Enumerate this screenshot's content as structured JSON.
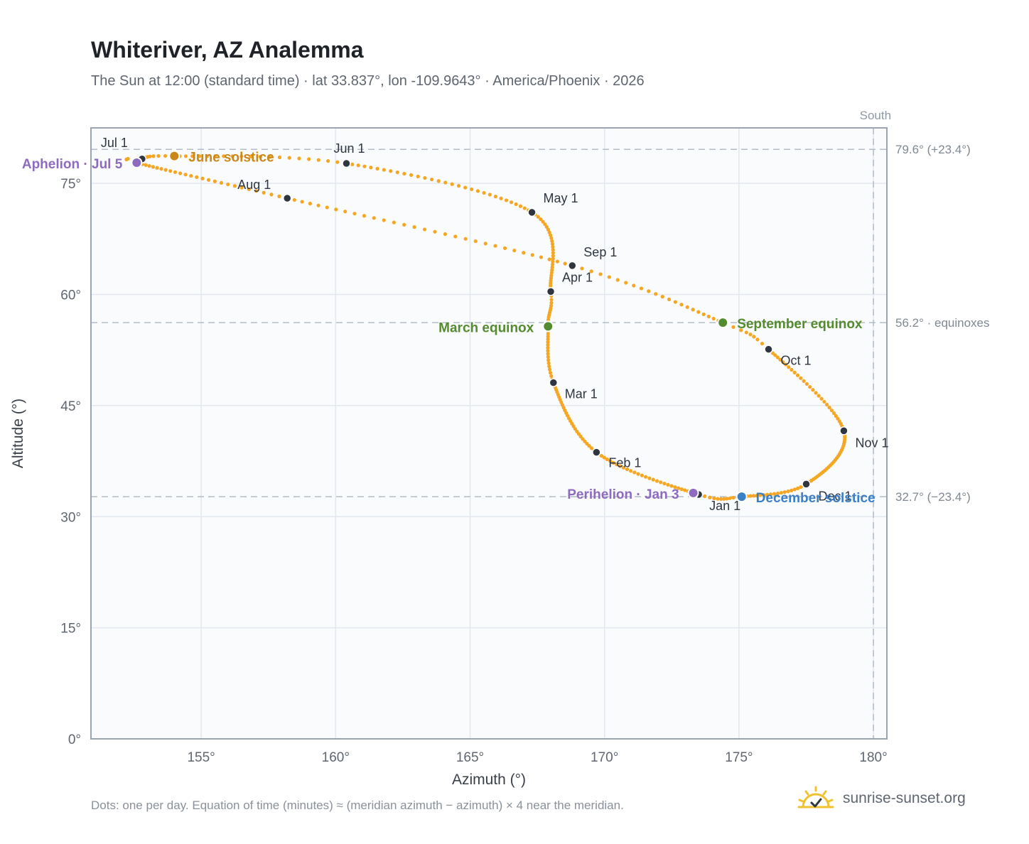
{
  "title": "Whiteriver, AZ Analemma",
  "subtitle": "The Sun at 12:00 (standard time) · lat 33.837°, lon -109.9643° · America/Phoenix · 2026",
  "footnote": "Dots: one per day. Equation of time (minutes) ≈ (meridian azimuth − azimuth) × 4 near the meridian.",
  "brand": "sunrise-sunset.org",
  "colors": {
    "curve": "#f5a623",
    "month_marker": "#2f3640",
    "solstice_june": "#c9891a",
    "solstice_december": "#3b7fc4",
    "equinox": "#558b2f",
    "apsis": "#8e6bbf",
    "reference_line": "#b3bcc8",
    "grid": "#e3e8ee",
    "plot_bg": "#f9fbfd"
  },
  "chart_data": {
    "type": "scatter",
    "xlabel": "Azimuth (°)",
    "ylabel": "Altitude (°)",
    "xlim": [
      150.9,
      180.5
    ],
    "ylim": [
      0,
      82.5
    ],
    "xticks": [
      155,
      160,
      165,
      170,
      175,
      180
    ],
    "yticks": [
      0,
      15,
      30,
      45,
      60,
      75
    ],
    "xtick_labels": [
      "155°",
      "160°",
      "165°",
      "170°",
      "175°",
      "180°"
    ],
    "ytick_labels": [
      "0°",
      "15°",
      "30°",
      "45°",
      "60°",
      "75°"
    ],
    "grid": true,
    "south_line": {
      "azimuth": 180,
      "label": "South"
    },
    "reference_lines": [
      {
        "altitude": 79.6,
        "label": "79.6° (+23.4°)"
      },
      {
        "altitude": 56.2,
        "label": "56.2° · equinoxes"
      },
      {
        "altitude": 32.7,
        "label": "32.7° (−23.4°)"
      }
    ],
    "month_markers": [
      {
        "label": "Jan 1",
        "azimuth": 173.5,
        "altitude": 33.0
      },
      {
        "label": "Feb 1",
        "azimuth": 169.7,
        "altitude": 38.7
      },
      {
        "label": "Mar 1",
        "azimuth": 168.1,
        "altitude": 48.1
      },
      {
        "label": "Apr 1",
        "azimuth": 168.0,
        "altitude": 60.4
      },
      {
        "label": "May 1",
        "azimuth": 167.3,
        "altitude": 71.1
      },
      {
        "label": "Jun 1",
        "azimuth": 160.4,
        "altitude": 77.7
      },
      {
        "label": "Jul 1",
        "azimuth": 152.8,
        "altitude": 78.3
      },
      {
        "label": "Aug 1",
        "azimuth": 158.2,
        "altitude": 73.0
      },
      {
        "label": "Sep 1",
        "azimuth": 168.8,
        "altitude": 63.9
      },
      {
        "label": "Oct 1",
        "azimuth": 176.1,
        "altitude": 52.6
      },
      {
        "label": "Nov 1",
        "azimuth": 178.9,
        "altitude": 41.6
      },
      {
        "label": "Dec 1",
        "azimuth": 177.5,
        "altitude": 34.4
      }
    ],
    "events": [
      {
        "label": "June solstice",
        "azimuth": 154.0,
        "altitude": 78.7,
        "kind": "solstice_june"
      },
      {
        "label": "December solstice",
        "azimuth": 175.1,
        "altitude": 32.7,
        "kind": "solstice_december"
      },
      {
        "label": "March equinox",
        "azimuth": 167.9,
        "altitude": 55.7,
        "kind": "equinox"
      },
      {
        "label": "September equinox",
        "azimuth": 174.4,
        "altitude": 56.2,
        "kind": "equinox"
      },
      {
        "label": "Aphelion · Jul 5",
        "azimuth": 152.6,
        "altitude": 77.8,
        "kind": "apsis"
      },
      {
        "label": "Perihelion · Jan 3",
        "azimuth": 173.3,
        "altitude": 33.2,
        "kind": "apsis"
      }
    ]
  }
}
